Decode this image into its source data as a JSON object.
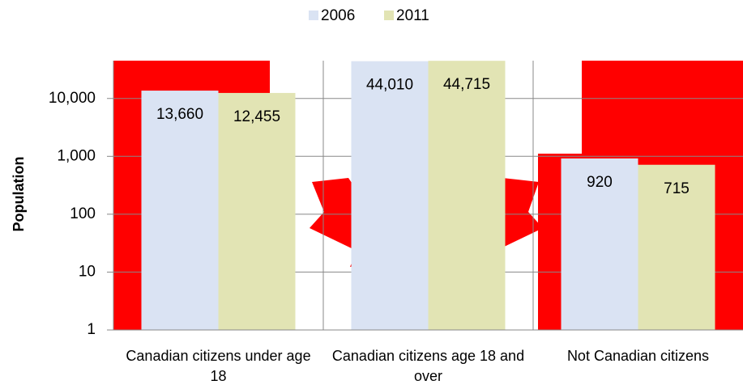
{
  "chart_data": {
    "type": "bar",
    "y_label": "Population",
    "log_scale": true,
    "categories": [
      "Canadian citizens under age 18",
      "Canadian citizens age 18 and over",
      "Not Canadian citizens"
    ],
    "series": [
      {
        "name": "2006",
        "color": "#dae3f3",
        "values": [
          13660,
          44010,
          920
        ],
        "value_labels": [
          "13,660",
          "44,010",
          "920"
        ]
      },
      {
        "name": "2011",
        "color": "#e2e4b4",
        "values": [
          12455,
          44715,
          715
        ],
        "value_labels": [
          "12,455",
          "44,715",
          "715"
        ]
      }
    ],
    "ylim": [
      1,
      45000
    ],
    "yticks": [
      1,
      10,
      100,
      {
        "value": 1000,
        "label": "1,000"
      },
      {
        "value": 10000,
        "label": "10,000"
      }
    ],
    "grid": true,
    "legend": "top"
  }
}
